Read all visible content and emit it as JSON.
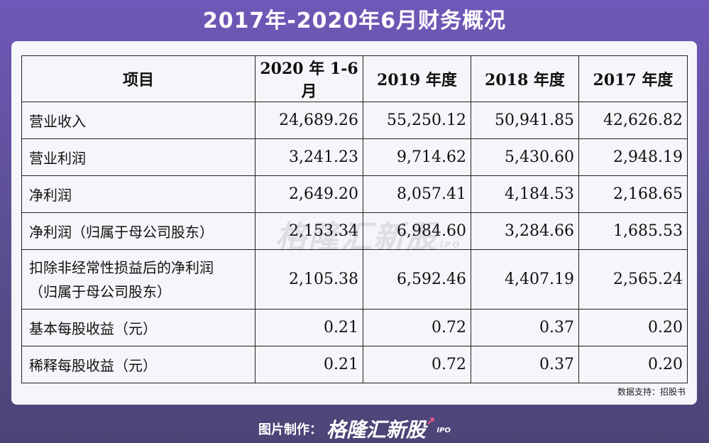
{
  "title": "2017年-2020年6月财务概况",
  "table": {
    "headers": [
      "项目",
      "2020 年 1-6 月",
      "2019 年度",
      "2018 年度",
      "2017 年度"
    ],
    "rows": [
      {
        "label": "营业收入",
        "values": [
          "24,689.26",
          "55,250.12",
          "50,941.85",
          "42,626.82"
        ]
      },
      {
        "label": "营业利润",
        "values": [
          "3,241.23",
          "9,714.62",
          "5,430.60",
          "2,948.19"
        ]
      },
      {
        "label": "净利润",
        "values": [
          "2,649.20",
          "8,057.41",
          "4,184.53",
          "2,168.65"
        ]
      },
      {
        "label": "净利润（归属于母公司股东）",
        "values": [
          "2,153.34",
          "6,984.60",
          "3,284.66",
          "1,685.53"
        ]
      },
      {
        "label_line1": "扣除非经常性损益后的净利润",
        "label_line2": "（归属于母公司股东）",
        "values": [
          "2,105.38",
          "6,592.46",
          "4,407.19",
          "2,565.24"
        ]
      },
      {
        "label": "基本每股收益（元）",
        "values": [
          "0.21",
          "0.72",
          "0.37",
          "0.20"
        ]
      },
      {
        "label": "稀释每股收益（元）",
        "values": [
          "0.21",
          "0.72",
          "0.37",
          "0.20"
        ]
      }
    ]
  },
  "source": "数据支持：招股书",
  "watermark": {
    "text": "格隆汇新股",
    "sub": "IPO"
  },
  "footer": {
    "prefix": "图片制作：",
    "brand": "格隆汇新股",
    "sub": "IPO"
  },
  "colors": {
    "background": "#6f58b8",
    "panel": "#f4f6f9",
    "accent": "#ff5e8a"
  }
}
